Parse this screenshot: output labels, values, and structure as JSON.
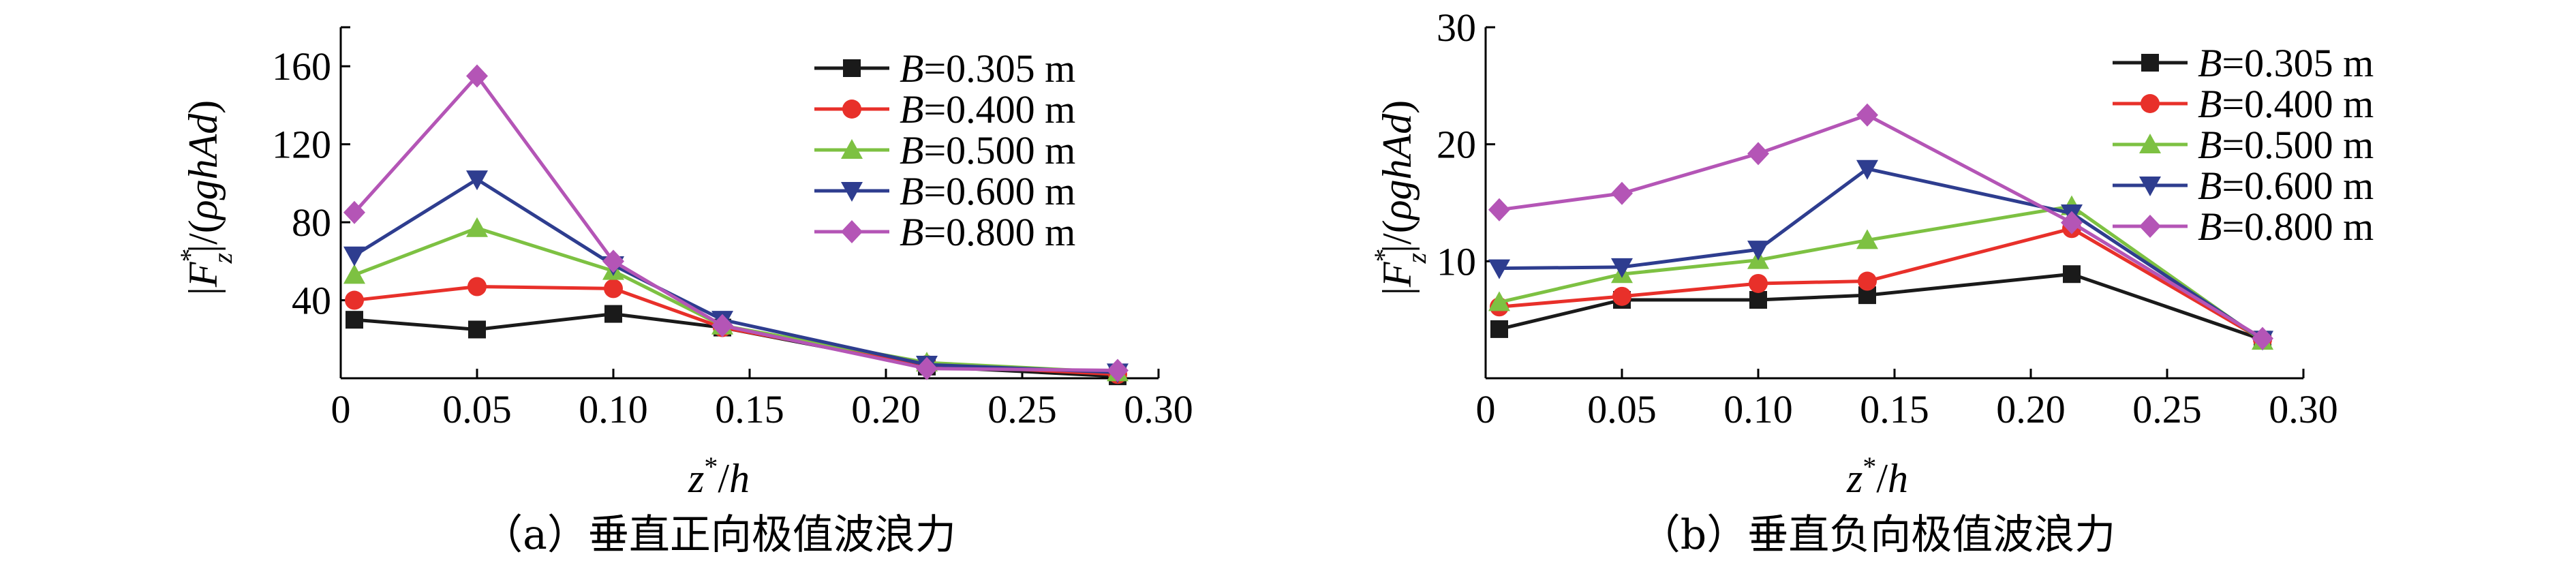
{
  "chart_data": [
    {
      "type": "line",
      "id": "a",
      "title": "",
      "caption": "（a）垂直正向极值波浪力",
      "xlabel": "z*/h",
      "ylabel": "|Fz*|/(ρghAd)",
      "xlim": [
        0,
        0.3
      ],
      "ylim": [
        0,
        180
      ],
      "xticks": [
        "0",
        "0.05",
        "0.10",
        "0.15",
        "0.20",
        "0.25",
        "0.30"
      ],
      "yticks": [
        "40",
        "80",
        "120",
        "160"
      ],
      "legend_position": "top-right",
      "x": [
        0.005,
        0.05,
        0.1,
        0.14,
        0.215,
        0.285
      ],
      "series": [
        {
          "name": "B=0.305 m",
          "values": [
            30,
            25,
            33,
            26,
            6,
            1
          ],
          "color": "#1a1a1a",
          "marker": "square"
        },
        {
          "name": "B=0.400 m",
          "values": [
            40,
            47,
            46,
            26,
            7,
            2
          ],
          "color": "#e8302a",
          "marker": "circle"
        },
        {
          "name": "B=0.500 m",
          "values": [
            53,
            77,
            55,
            27,
            8,
            3
          ],
          "color": "#7dc142",
          "marker": "triangle-up"
        },
        {
          "name": "B=0.600 m",
          "values": [
            63,
            102,
            58,
            30,
            7,
            3
          ],
          "color": "#2e3d8f",
          "marker": "triangle-down"
        },
        {
          "name": "B=0.800 m",
          "values": [
            85,
            155,
            60,
            27,
            5,
            4
          ],
          "color": "#b455b6",
          "marker": "diamond"
        }
      ]
    },
    {
      "type": "line",
      "id": "b",
      "title": "",
      "caption": "（b）垂直负向极值波浪力",
      "xlabel": "z*/h",
      "ylabel": "|Fz*|/(ρghAd)",
      "xlim": [
        0,
        0.3
      ],
      "ylim": [
        0,
        30
      ],
      "xticks": [
        "0",
        "0.05",
        "0.10",
        "0.15",
        "0.20",
        "0.25",
        "0.30"
      ],
      "yticks": [
        "10",
        "20",
        "30"
      ],
      "legend_position": "top-right",
      "x": [
        0.005,
        0.05,
        0.1,
        0.14,
        0.215,
        0.285
      ],
      "series": [
        {
          "name": "B=0.305 m",
          "values": [
            4.2,
            6.7,
            6.7,
            7.1,
            8.9,
            3.3
          ],
          "color": "#1a1a1a",
          "marker": "square"
        },
        {
          "name": "B=0.400 m",
          "values": [
            6.1,
            7.0,
            8.1,
            8.3,
            12.8,
            3.3
          ],
          "color": "#e8302a",
          "marker": "circle"
        },
        {
          "name": "B=0.500 m",
          "values": [
            6.5,
            8.9,
            10.1,
            11.8,
            14.7,
            3.2
          ],
          "color": "#7dc142",
          "marker": "triangle-up"
        },
        {
          "name": "B=0.600 m",
          "values": [
            9.4,
            9.5,
            11.0,
            17.9,
            14.1,
            3.3
          ],
          "color": "#2e3d8f",
          "marker": "triangle-down"
        },
        {
          "name": "B=0.800 m",
          "values": [
            14.4,
            15.8,
            19.2,
            22.5,
            13.3,
            3.4
          ],
          "color": "#b455b6",
          "marker": "diamond"
        }
      ]
    }
  ]
}
